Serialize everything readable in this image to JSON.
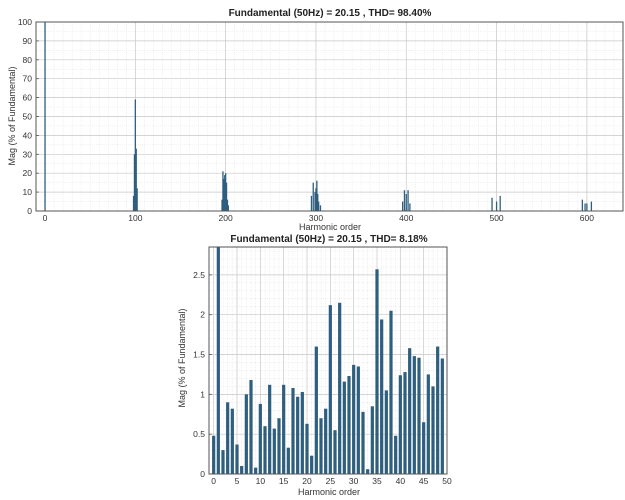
{
  "chart_data": [
    {
      "type": "bar",
      "title": "Fundamental (50Hz) = 20.15 , THD= 98.40%",
      "xlabel": "Harmonic order",
      "ylabel": "Mag (% of Fundamental)",
      "xlim": [
        -10,
        640
      ],
      "ylim": [
        0,
        100
      ],
      "xticks": [
        0,
        100,
        200,
        300,
        400,
        500,
        600
      ],
      "yticks": [
        0,
        10,
        20,
        30,
        40,
        50,
        60,
        70,
        80,
        90,
        100
      ],
      "grid": true,
      "color": "#2f5f7f",
      "x": [
        0,
        98,
        99,
        100,
        101,
        102,
        196,
        197,
        198,
        199,
        200,
        201,
        202,
        203,
        295,
        297,
        299,
        300,
        301,
        302,
        303,
        305,
        396,
        398,
        400,
        402,
        404,
        495,
        500,
        504,
        595,
        598,
        600,
        605
      ],
      "values": [
        100,
        8,
        30,
        59,
        33,
        12,
        6,
        21,
        17,
        19,
        20,
        15,
        6,
        3,
        8,
        15,
        10,
        12,
        16,
        9,
        5,
        3,
        5,
        11,
        9,
        11,
        4,
        7,
        5,
        8,
        6,
        4,
        4,
        5
      ]
    },
    {
      "type": "bar",
      "title": "Fundamental (50Hz) = 20.15 , THD= 8.18%",
      "xlabel": "Harmonic order",
      "ylabel": "Mag (% of Fundamental)",
      "xlim": [
        -1,
        50
      ],
      "ylim": [
        0,
        2.85
      ],
      "xticks": [
        0,
        5,
        10,
        15,
        20,
        25,
        30,
        35,
        40,
        45,
        50
      ],
      "yticks": [
        0,
        0.5,
        1,
        1.5,
        2,
        2.5
      ],
      "grid": true,
      "color": "#2f5f7f",
      "x": [
        0,
        1,
        2,
        3,
        4,
        5,
        6,
        7,
        8,
        9,
        10,
        11,
        12,
        13,
        14,
        15,
        16,
        17,
        18,
        19,
        20,
        21,
        22,
        23,
        24,
        25,
        26,
        27,
        28,
        29,
        30,
        31,
        32,
        33,
        34,
        35,
        36,
        37,
        38,
        39,
        40,
        41,
        42,
        43,
        44,
        45,
        46,
        47,
        48,
        49
      ],
      "values": [
        0.48,
        2.85,
        0.3,
        0.9,
        0.82,
        0.37,
        0.1,
        1.0,
        1.18,
        0.08,
        0.88,
        0.6,
        1.12,
        0.57,
        0.7,
        1.12,
        0.33,
        1.08,
        0.97,
        1.03,
        0.63,
        0.23,
        1.6,
        0.7,
        0.82,
        2.12,
        0.55,
        2.15,
        1.16,
        1.23,
        1.37,
        1.35,
        0.78,
        0.06,
        0.85,
        2.57,
        1.94,
        1.05,
        2.05,
        0.48,
        1.24,
        1.28,
        1.58,
        1.48,
        1.46,
        0.65,
        1.25,
        1.1,
        1.6,
        1.45
      ]
    }
  ]
}
